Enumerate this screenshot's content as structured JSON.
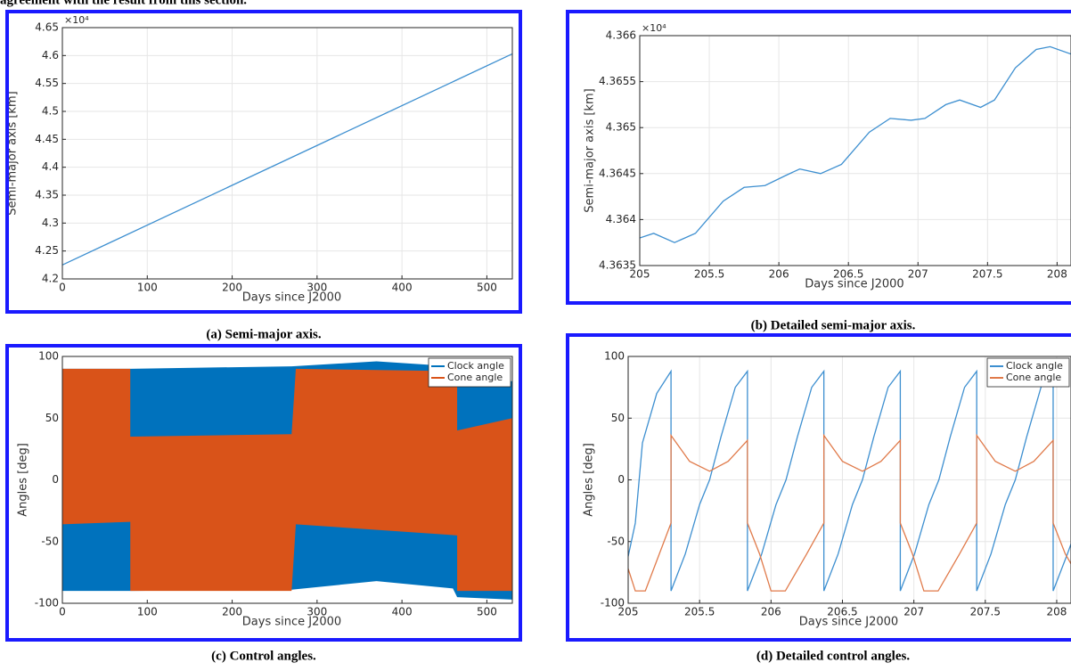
{
  "text": "agreement with the result from this section.",
  "chart_data": [
    {
      "type": "line",
      "caption": "(a) Semi-major axis.",
      "xlabel": "Days since J2000",
      "ylabel": "Semi-major axis [km]",
      "y_exponent": "×10⁴",
      "xlim": [
        0,
        530
      ],
      "xticks": [
        0,
        100,
        200,
        300,
        400,
        500
      ],
      "ylim": [
        42000,
        46500
      ],
      "yticks": [
        {
          "value": 42000,
          "label": "4.2"
        },
        {
          "value": 42500,
          "label": "4.25"
        },
        {
          "value": 43000,
          "label": "4.3"
        },
        {
          "value": 43500,
          "label": "4.35"
        },
        {
          "value": 44000,
          "label": "4.4"
        },
        {
          "value": 44500,
          "label": "4.45"
        },
        {
          "value": 45000,
          "label": "4.5"
        },
        {
          "value": 45500,
          "label": "4.55"
        },
        {
          "value": 46000,
          "label": "4.6"
        },
        {
          "value": 46500,
          "label": "4.65"
        }
      ],
      "grid": true,
      "series": [
        {
          "name": "Semi-major axis",
          "color": "#3d8fd0",
          "x": [
            0,
            530
          ],
          "values": [
            42250,
            46030
          ]
        }
      ]
    },
    {
      "type": "line",
      "caption": "(b) Detailed semi-major axis.",
      "xlabel": "Days since J2000",
      "ylabel": "Semi-major axis [km]",
      "y_exponent": "×10⁴",
      "xlim": [
        205,
        208.1
      ],
      "xticks": [
        205,
        205.5,
        206,
        206.5,
        207,
        207.5,
        208
      ],
      "ylim": [
        43635,
        43660
      ],
      "yticks": [
        {
          "value": 43635,
          "label": "4.3635"
        },
        {
          "value": 43640,
          "label": "4.364"
        },
        {
          "value": 43645,
          "label": "4.3645"
        },
        {
          "value": 43650,
          "label": "4.365"
        },
        {
          "value": 43655,
          "label": "4.3655"
        },
        {
          "value": 43660,
          "label": "4.366"
        }
      ],
      "grid": true,
      "series": [
        {
          "name": "Semi-major axis",
          "color": "#3d8fd0",
          "x": [
            205,
            205.1,
            205.25,
            205.4,
            205.6,
            205.75,
            205.9,
            206.05,
            206.15,
            206.3,
            206.45,
            206.65,
            206.8,
            206.95,
            207.05,
            207.2,
            207.3,
            207.45,
            207.55,
            207.7,
            207.85,
            207.95,
            208.1
          ],
          "values": [
            43638,
            43638.5,
            43637.5,
            43638.5,
            43642,
            43643.5,
            43643.7,
            43644.8,
            43645.5,
            43645,
            43646,
            43649.5,
            43651,
            43650.8,
            43651,
            43652.5,
            43653,
            43652.2,
            43653,
            43656.5,
            43658.5,
            43658.8,
            43658
          ]
        }
      ]
    },
    {
      "type": "area",
      "caption": "(c) Control angles.",
      "xlabel": "Days since J2000",
      "ylabel": "Angles [deg]",
      "xlim": [
        0,
        530
      ],
      "xticks": [
        0,
        100,
        200,
        300,
        400,
        500
      ],
      "ylim": [
        -100,
        100
      ],
      "yticks": [
        -100,
        -50,
        0,
        50,
        100
      ],
      "grid": false,
      "legend": "upper right",
      "series": [
        {
          "name": "Clock angle",
          "color": "#0072bd",
          "x": [
            0,
            80,
            80,
            270,
            270,
            370,
            460,
            465,
            530
          ],
          "upper": [
            90,
            90,
            90,
            92,
            92,
            96,
            92,
            80,
            80
          ],
          "lower": [
            -90,
            -90,
            -90,
            -89,
            -89,
            -82,
            -88,
            -95,
            -97
          ]
        },
        {
          "name": "Cone angle",
          "color": "#d95319",
          "x": [
            0,
            80,
            80,
            270,
            275,
            465,
            465,
            530
          ],
          "upper": [
            90,
            90,
            35,
            37,
            90,
            88,
            40,
            50
          ],
          "lower": [
            -36,
            -34,
            -90,
            -90,
            -36,
            -45,
            -90,
            -90
          ]
        }
      ]
    },
    {
      "type": "line",
      "caption": "(d) Detailed control angles.",
      "xlabel": "Days since J2000",
      "ylabel": "Angles [deg]",
      "xlim": [
        205,
        208.1
      ],
      "xticks": [
        205,
        205.5,
        206,
        206.5,
        207,
        207.5,
        208
      ],
      "ylim": [
        -100,
        100
      ],
      "yticks": [
        -100,
        -50,
        0,
        50,
        100
      ],
      "grid": true,
      "legend": "upper right",
      "series": [
        {
          "name": "Clock angle",
          "color": "#3d8fd0",
          "x": [
            205,
            205.05,
            205.1,
            205.2,
            205.3,
            205.3,
            205.4,
            205.5,
            205.57,
            205.65,
            205.75,
            205.835,
            205.835,
            205.935,
            206.035,
            206.105,
            206.185,
            206.285,
            206.37,
            206.37,
            206.47,
            206.57,
            206.64,
            206.72,
            206.82,
            206.905,
            206.905,
            207.005,
            207.105,
            207.175,
            207.255,
            207.355,
            207.44,
            207.44,
            207.54,
            207.64,
            207.71,
            207.79,
            207.89,
            207.975,
            207.975,
            208.075,
            208.1
          ],
          "values": [
            -62,
            -35,
            30,
            70,
            88,
            -90,
            -60,
            -20,
            0,
            35,
            75,
            88,
            -90,
            -60,
            -20,
            0,
            35,
            75,
            88,
            -90,
            -60,
            -20,
            0,
            35,
            75,
            88,
            -90,
            -60,
            -20,
            0,
            35,
            75,
            88,
            -90,
            -60,
            -20,
            0,
            35,
            75,
            88,
            -90,
            -60,
            -52
          ]
        },
        {
          "name": "Cone angle",
          "color": "#e07a4a",
          "x": [
            205,
            205.05,
            205.12,
            205.3,
            205.3,
            205.43,
            205.57,
            205.7,
            205.835,
            205.835,
            205.92,
            206.0,
            206.1,
            206.25,
            206.37,
            206.37,
            206.5,
            206.64,
            206.77,
            206.905,
            206.905,
            206.99,
            207.07,
            207.17,
            207.32,
            207.44,
            207.44,
            207.57,
            207.71,
            207.84,
            207.975,
            207.975,
            208.06,
            208.1
          ],
          "values": [
            -72,
            -90,
            -90,
            -35,
            36,
            15,
            7,
            15,
            32,
            -35,
            -60,
            -90,
            -90,
            -60,
            -35,
            36,
            15,
            7,
            15,
            32,
            -35,
            -60,
            -90,
            -90,
            -60,
            -35,
            36,
            15,
            7,
            15,
            32,
            -35,
            -60,
            -68
          ]
        }
      ]
    }
  ]
}
